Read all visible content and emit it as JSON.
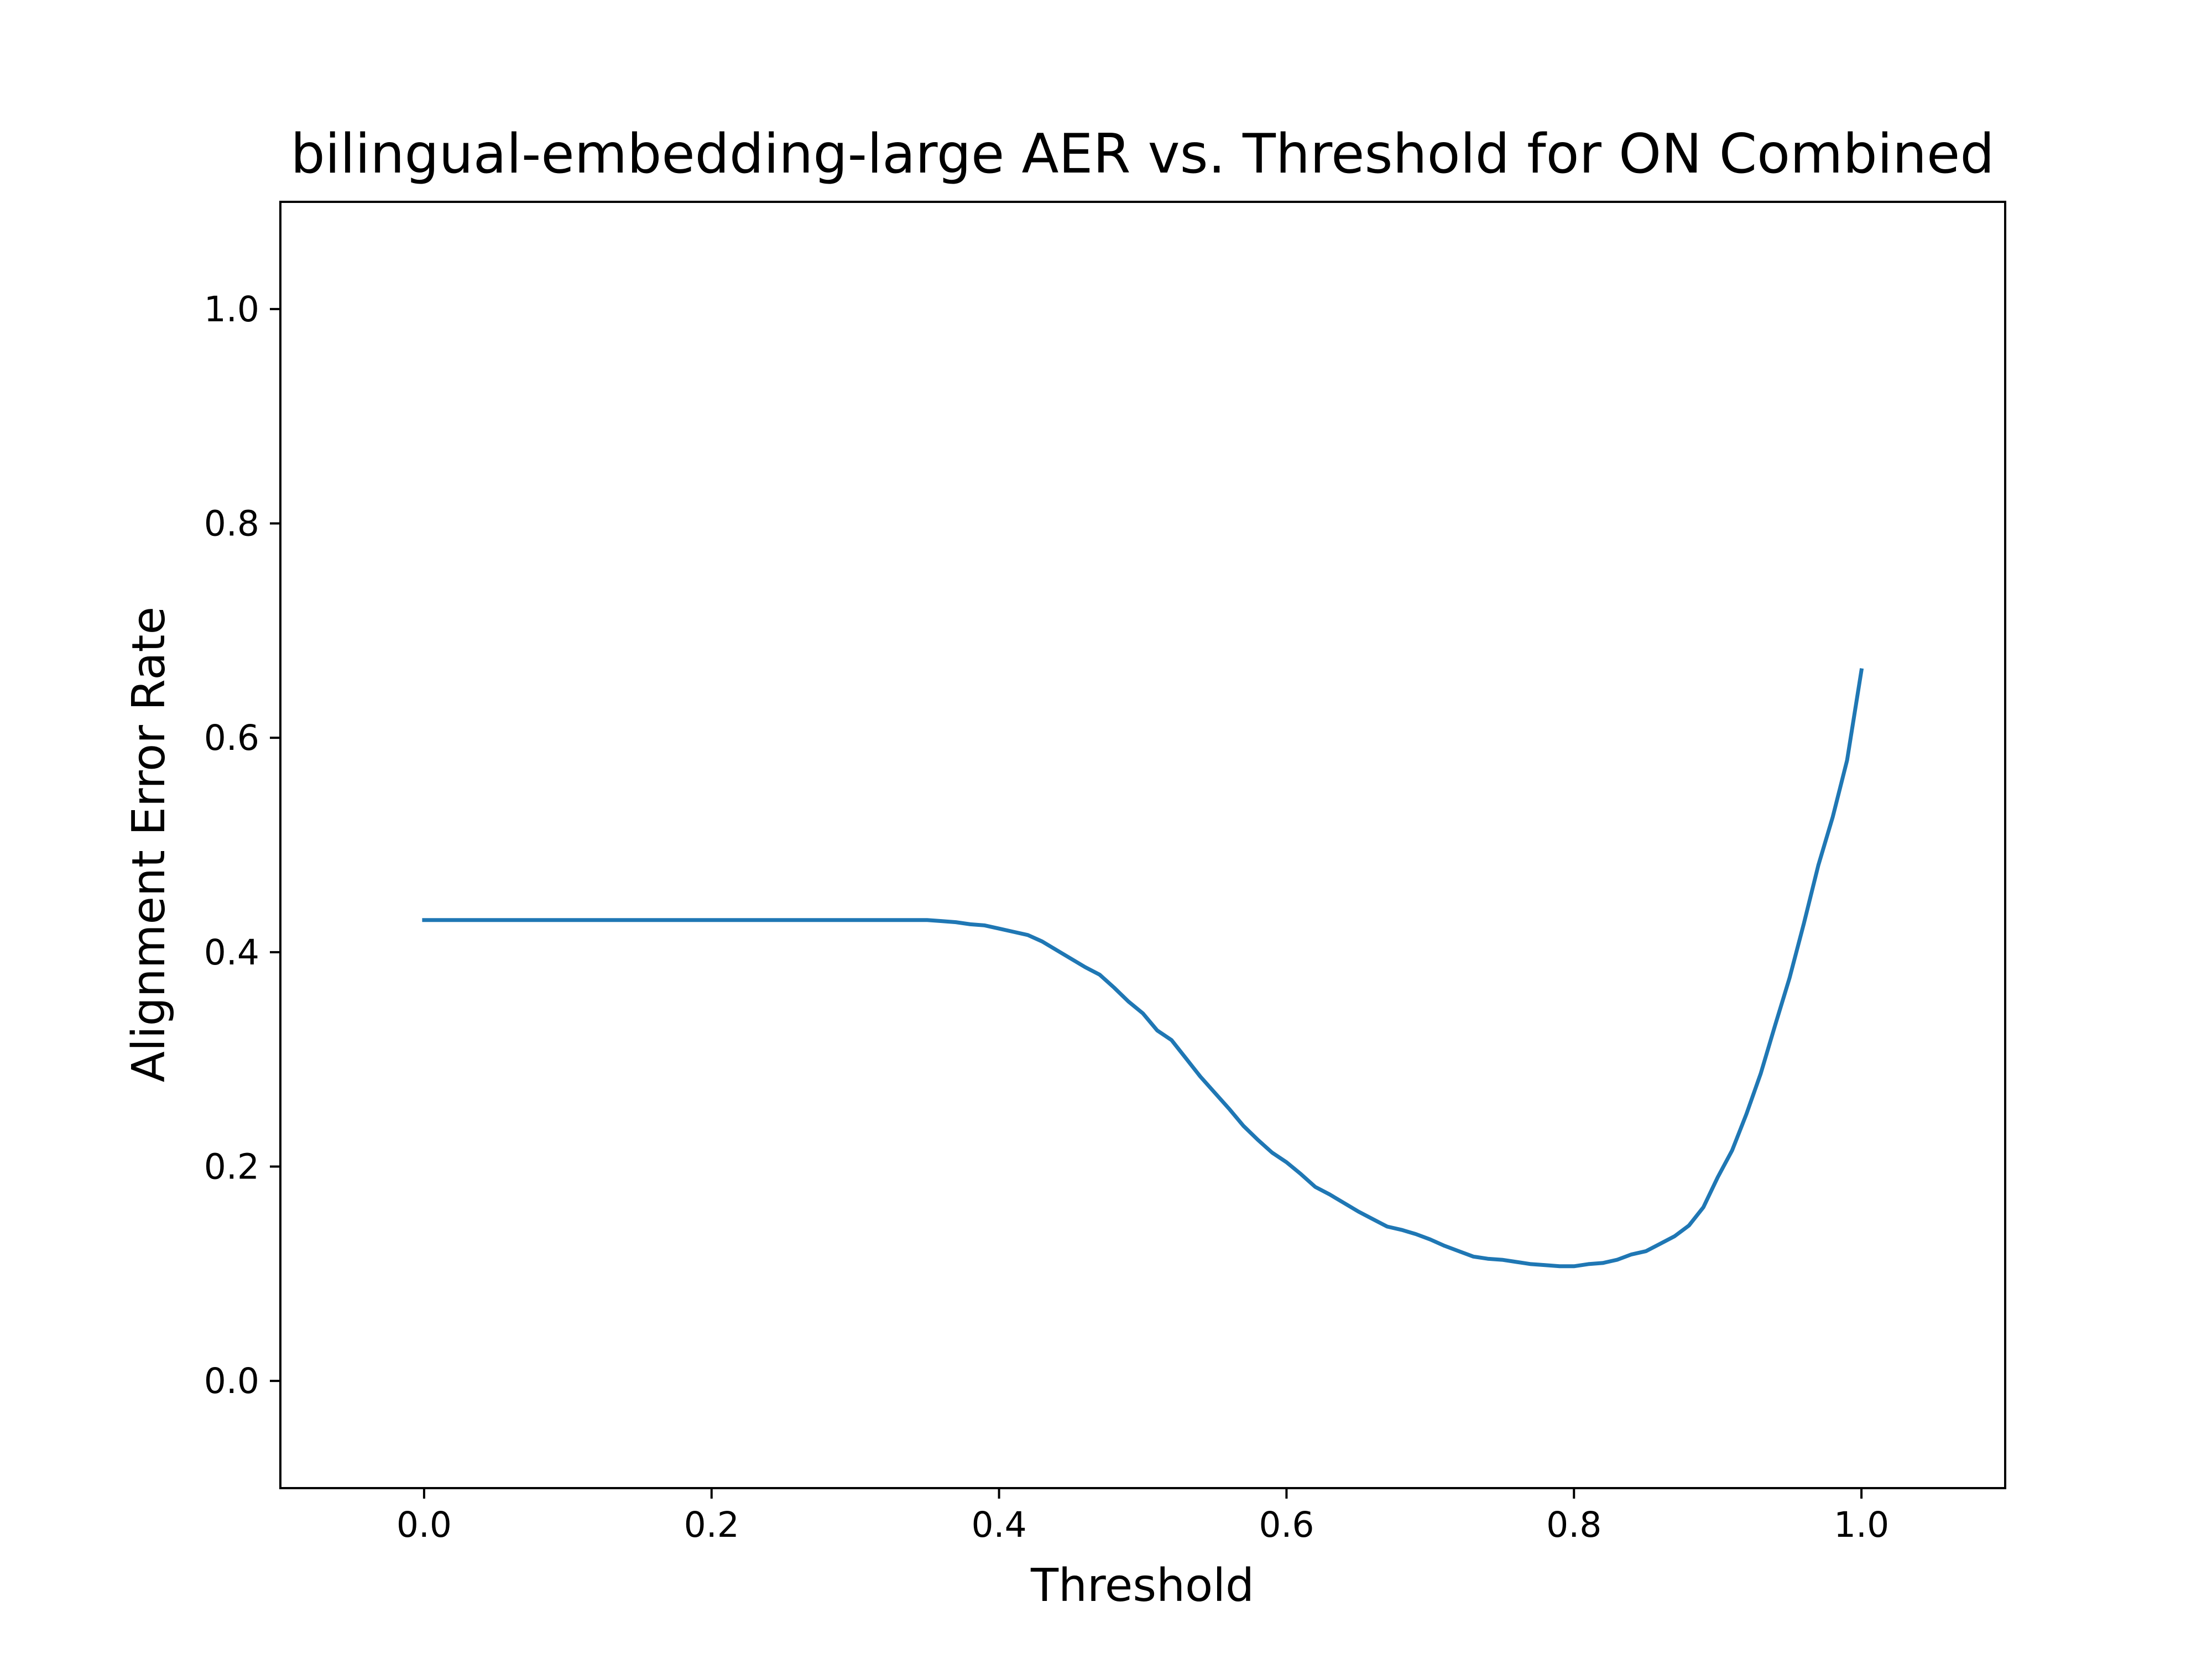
{
  "chart_data": {
    "type": "line",
    "title": "bilingual-embedding-large AER vs. Threshold for ON Combined",
    "xlabel": "Threshold",
    "ylabel": "Alignment Error Rate",
    "xlim": [
      -0.1,
      1.1
    ],
    "ylim": [
      -0.1,
      1.1
    ],
    "xticks": [
      0.0,
      0.2,
      0.4,
      0.6,
      0.8,
      1.0
    ],
    "yticks": [
      0.0,
      0.2,
      0.4,
      0.6,
      0.8,
      1.0
    ],
    "xtick_labels": [
      "0.0",
      "0.2",
      "0.4",
      "0.6",
      "0.8",
      "1.0"
    ],
    "ytick_labels": [
      "0.0",
      "0.2",
      "0.4",
      "0.6",
      "0.8",
      "1.0"
    ],
    "grid": false,
    "series": [
      {
        "color": "#1f77b4",
        "x": [
          0.0,
          0.05,
          0.1,
          0.15,
          0.2,
          0.25,
          0.3,
          0.33,
          0.35,
          0.36,
          0.37,
          0.38,
          0.39,
          0.4,
          0.41,
          0.42,
          0.43,
          0.44,
          0.45,
          0.46,
          0.47,
          0.48,
          0.49,
          0.5,
          0.51,
          0.52,
          0.53,
          0.54,
          0.55,
          0.56,
          0.57,
          0.58,
          0.59,
          0.6,
          0.61,
          0.62,
          0.63,
          0.64,
          0.65,
          0.66,
          0.67,
          0.68,
          0.69,
          0.7,
          0.71,
          0.72,
          0.73,
          0.74,
          0.75,
          0.76,
          0.77,
          0.78,
          0.79,
          0.8,
          0.81,
          0.82,
          0.83,
          0.84,
          0.85,
          0.86,
          0.87,
          0.88,
          0.89,
          0.9,
          0.91,
          0.92,
          0.93,
          0.94,
          0.95,
          0.96,
          0.97,
          0.98,
          0.99,
          1.0
        ],
        "y": [
          0.43,
          0.43,
          0.43,
          0.43,
          0.43,
          0.43,
          0.43,
          0.43,
          0.43,
          0.429,
          0.428,
          0.426,
          0.425,
          0.422,
          0.419,
          0.416,
          0.41,
          0.402,
          0.394,
          0.386,
          0.379,
          0.367,
          0.354,
          0.343,
          0.327,
          0.318,
          0.301,
          0.284,
          0.269,
          0.254,
          0.238,
          0.225,
          0.213,
          0.204,
          0.193,
          0.181,
          0.174,
          0.166,
          0.158,
          0.151,
          0.144,
          0.141,
          0.137,
          0.132,
          0.126,
          0.121,
          0.116,
          0.114,
          0.113,
          0.111,
          0.109,
          0.108,
          0.107,
          0.107,
          0.109,
          0.11,
          0.113,
          0.118,
          0.121,
          0.128,
          0.135,
          0.145,
          0.162,
          0.19,
          0.215,
          0.249,
          0.287,
          0.332,
          0.376,
          0.427,
          0.481,
          0.526,
          0.579,
          0.663
        ]
      }
    ]
  }
}
